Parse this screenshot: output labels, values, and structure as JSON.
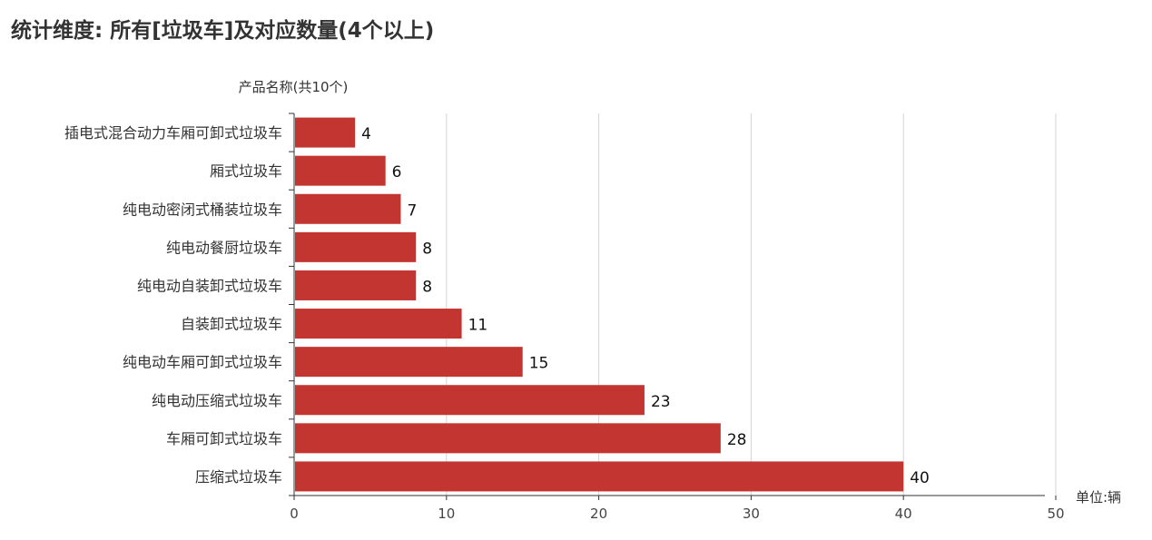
{
  "title": "统计维度: 所有[垃圾车]及对应数量(4个以上)",
  "chart_data": {
    "type": "bar",
    "orientation": "horizontal",
    "title": "统计维度: 所有[垃圾车]及对应数量(4个以上)",
    "ylabel": "产品名称(共10个)",
    "xlabel": "单位:辆",
    "categories": [
      "插电式混合动力车厢可卸式垃圾车",
      "厢式垃圾车",
      "纯电动密闭式桶装垃圾车",
      "纯电动餐厨垃圾车",
      "纯电动自装卸式垃圾车",
      "自装卸式垃圾车",
      "纯电动车厢可卸式垃圾车",
      "纯电动压缩式垃圾车",
      "车厢可卸式垃圾车",
      "压缩式垃圾车"
    ],
    "values": [
      4,
      6,
      7,
      8,
      8,
      11,
      15,
      23,
      28,
      40
    ],
    "xlim": [
      0,
      50
    ],
    "xticks": [
      0,
      10,
      20,
      30,
      40,
      50
    ],
    "grid": "vertical",
    "bar_color": "#c23531",
    "data_labels": true
  }
}
